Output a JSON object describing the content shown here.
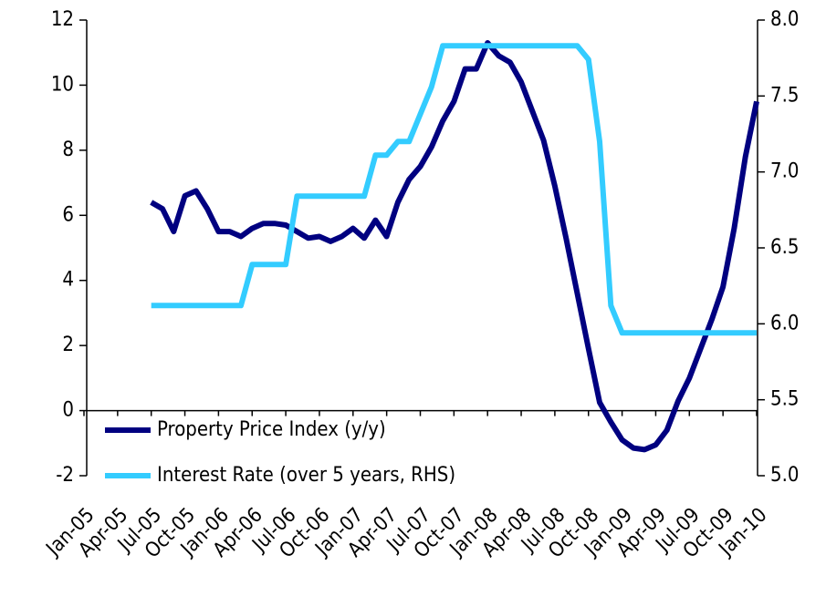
{
  "chart_data": {
    "type": "line",
    "categories": [
      "Jan-05",
      null,
      null,
      "Apr-05",
      null,
      null,
      "Jul-05",
      null,
      null,
      "Oct-05",
      null,
      null,
      "Jan-06",
      null,
      null,
      "Apr-06",
      null,
      null,
      "Jul-06",
      null,
      null,
      "Oct-06",
      null,
      null,
      "Jan-07",
      null,
      null,
      "Apr-07",
      null,
      null,
      "Jul-07",
      null,
      null,
      "Oct-07",
      null,
      null,
      "Jan-08",
      null,
      null,
      "Apr-08",
      null,
      null,
      "Jul-08",
      null,
      null,
      "Oct-08",
      null,
      null,
      "Jan-09",
      null,
      null,
      "Apr-09",
      null,
      null,
      "Jul-09",
      null,
      null,
      "Oct-09",
      null,
      null,
      "Jan-10"
    ],
    "series": [
      {
        "name": "Property Price Index (y/y)",
        "color": "#000080",
        "axis": "y",
        "values": [
          null,
          null,
          null,
          null,
          null,
          null,
          6.4,
          6.2,
          5.5,
          6.6,
          6.75,
          6.2,
          5.5,
          5.5,
          5.35,
          5.6,
          5.75,
          5.75,
          5.7,
          5.5,
          5.3,
          5.35,
          5.2,
          5.35,
          5.6,
          5.3,
          5.85,
          5.35,
          6.4,
          7.1,
          7.5,
          8.1,
          8.9,
          9.5,
          10.5,
          10.5,
          11.3,
          10.9,
          10.7,
          10.1,
          9.2,
          8.3,
          6.9,
          5.3,
          3.6,
          1.9,
          0.25,
          -0.35,
          -0.9,
          -1.15,
          -1.2,
          -1.05,
          -0.6,
          0.3,
          1.0,
          1.9,
          2.8,
          3.8,
          5.6,
          7.8,
          9.5
        ]
      },
      {
        "name": "Interest Rate (over 5 years, RHS)",
        "color": "#33ccff",
        "axis": "y2",
        "values": [
          null,
          null,
          null,
          null,
          null,
          null,
          6.12,
          6.12,
          6.12,
          6.12,
          6.12,
          6.12,
          6.12,
          6.12,
          6.12,
          6.39,
          6.39,
          6.39,
          6.39,
          6.84,
          6.84,
          6.84,
          6.84,
          6.84,
          6.84,
          6.84,
          7.11,
          7.11,
          7.2,
          7.2,
          7.38,
          7.56,
          7.83,
          7.83,
          7.83,
          7.83,
          7.83,
          7.83,
          7.83,
          7.83,
          7.83,
          7.83,
          7.83,
          7.83,
          7.83,
          7.74,
          7.2,
          6.12,
          5.94,
          5.94,
          5.94,
          5.94,
          5.94,
          5.94,
          5.94,
          5.94,
          5.94,
          5.94,
          5.94,
          5.94,
          5.94
        ]
      }
    ],
    "ylim": [
      -2,
      12
    ],
    "yticks": [
      -2,
      0,
      2,
      4,
      6,
      8,
      10,
      12
    ],
    "y2lim": [
      5,
      8
    ],
    "y2ticks": [
      {
        "value": 5,
        "label": "5.0"
      },
      {
        "value": 5.5,
        "label": "5.5"
      },
      {
        "value": 6,
        "label": "6.0"
      },
      {
        "value": 6.5,
        "label": "6.5"
      },
      {
        "value": 7,
        "label": "7.0"
      },
      {
        "value": 7.5,
        "label": "7.5"
      },
      {
        "value": 8,
        "label": "8.0"
      }
    ],
    "legend": "lower left"
  }
}
